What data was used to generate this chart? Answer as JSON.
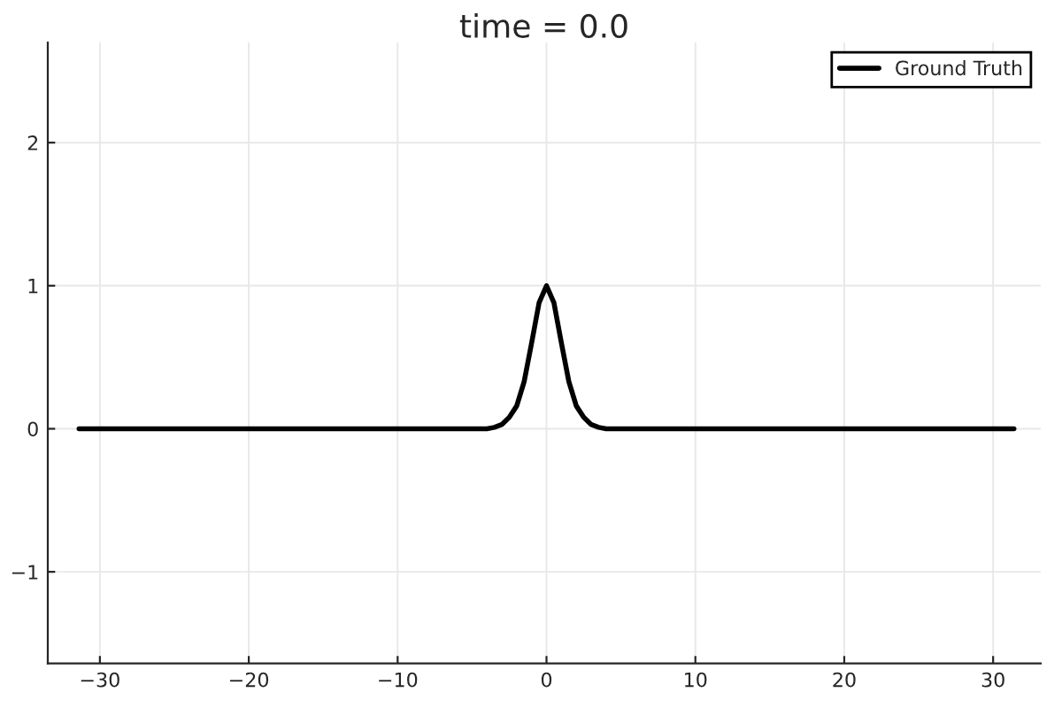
{
  "chart_data": {
    "type": "line",
    "title": "time = 0.0",
    "series": [
      {
        "name": "Ground Truth",
        "color": "#000000",
        "x": [
          -31.4,
          -5,
          -4,
          -3.5,
          -3,
          -2.5,
          -2,
          -1.5,
          -1,
          -0.5,
          0,
          0.5,
          1,
          1.5,
          2,
          2.5,
          3,
          3.5,
          4,
          5,
          31.4
        ],
        "values": [
          0,
          0,
          0,
          0.01,
          0.03,
          0.08,
          0.16,
          0.33,
          0.6,
          0.88,
          1,
          0.88,
          0.6,
          0.33,
          0.16,
          0.08,
          0.03,
          0.01,
          0,
          0,
          0
        ]
      }
    ],
    "xlim": [
      -33.5,
      33.2
    ],
    "ylim": [
      -1.64,
      2.7
    ],
    "xticks": [
      {
        "value": -30,
        "label": "−30"
      },
      {
        "value": -20,
        "label": "−20"
      },
      {
        "value": -10,
        "label": "−10"
      },
      0,
      10,
      20,
      30
    ],
    "yticks": [
      {
        "value": -1,
        "label": "−1"
      },
      0,
      1,
      2
    ],
    "grid": true,
    "legend": "top right",
    "marker": "none",
    "line_style": "solid"
  }
}
